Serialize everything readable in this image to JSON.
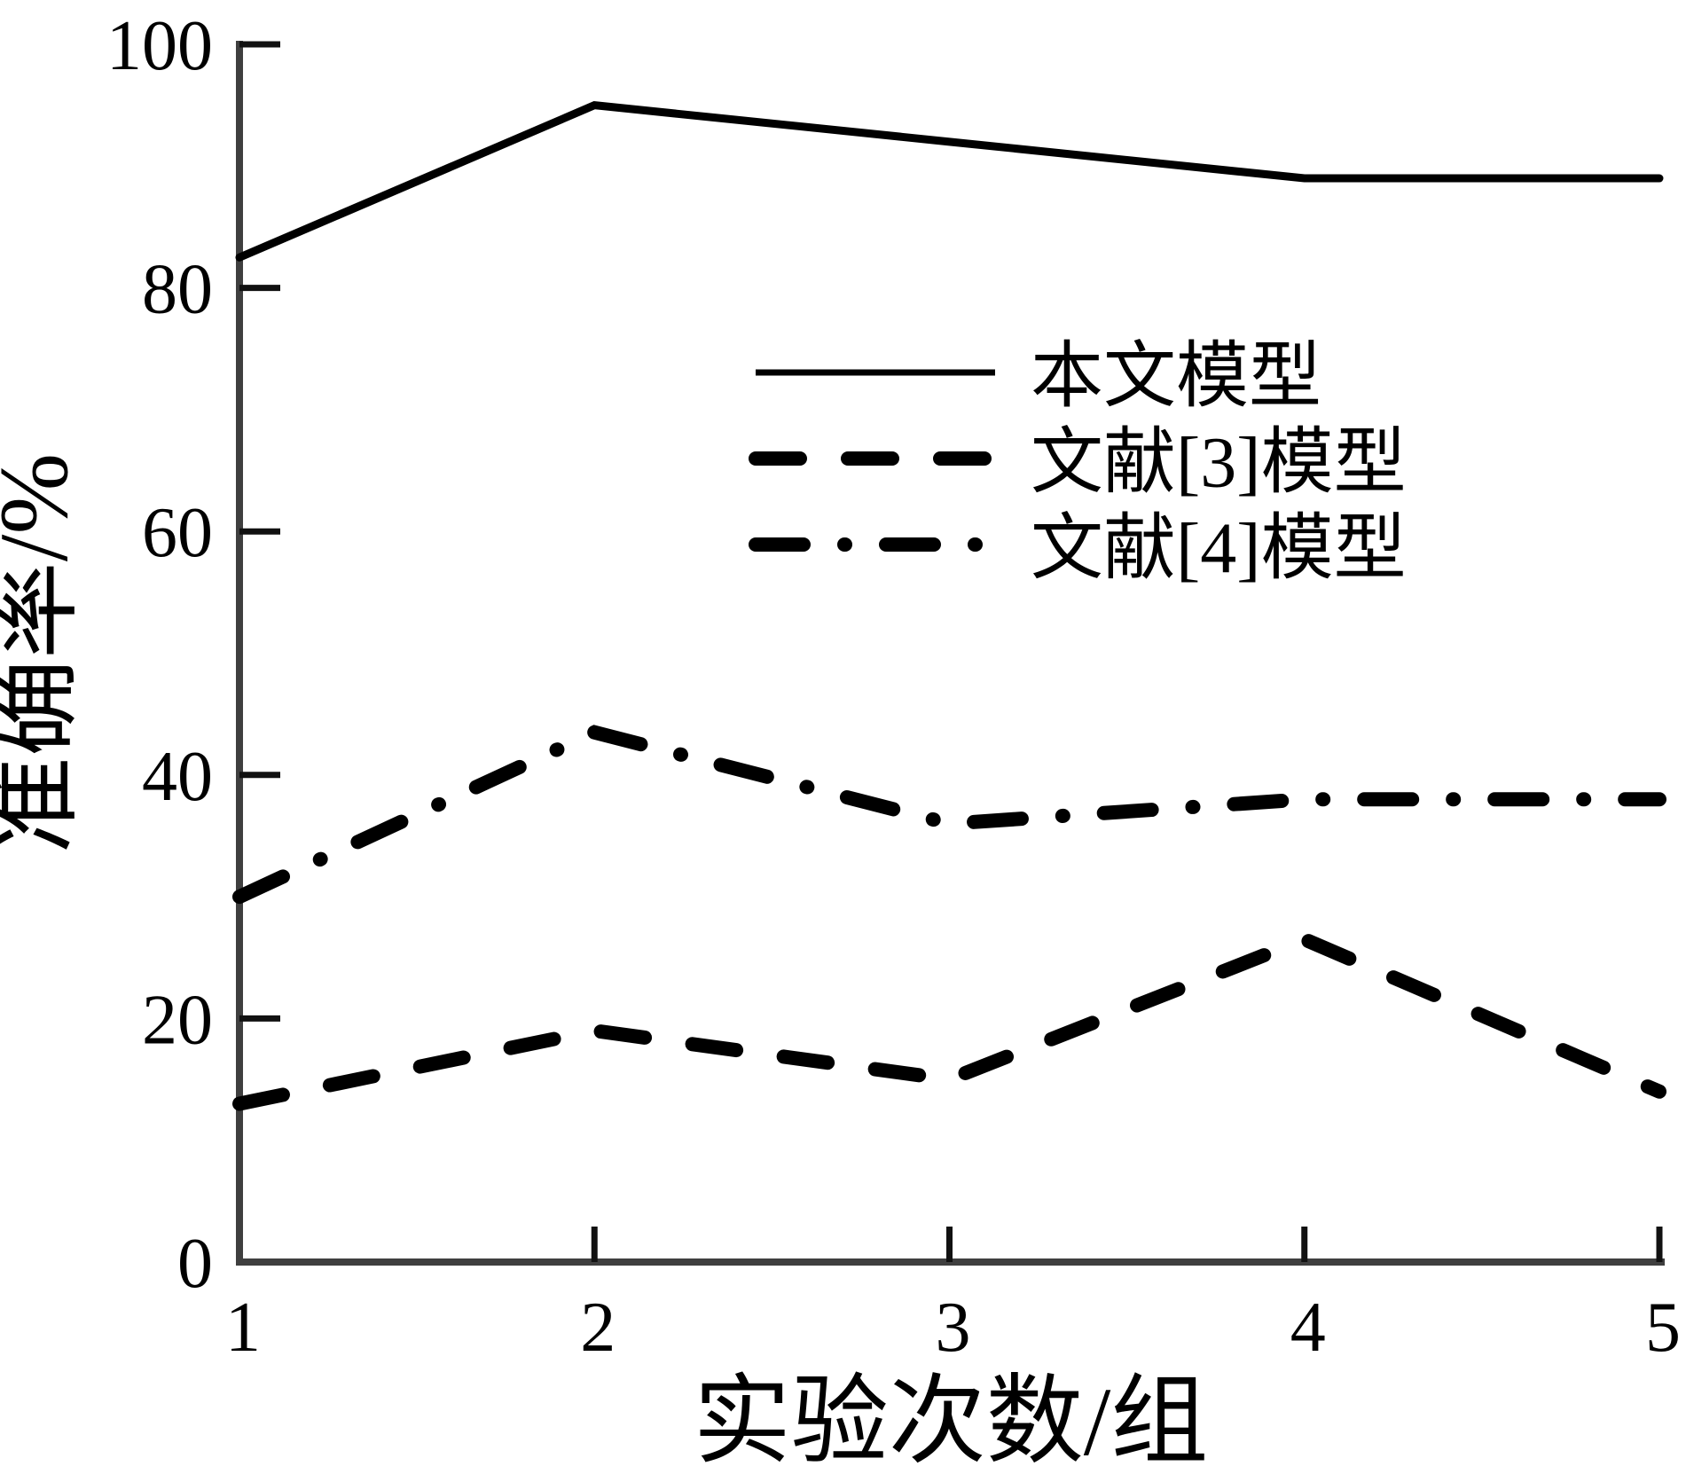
{
  "chart_data": {
    "type": "line",
    "title": "",
    "xlabel": "实验次数/组",
    "ylabel": "准确率/%",
    "x": [
      1,
      2,
      3,
      4,
      5
    ],
    "xticks": [
      1,
      2,
      3,
      4,
      5
    ],
    "yticks": [
      0,
      20,
      40,
      60,
      80,
      100
    ],
    "xlim": [
      1,
      5
    ],
    "ylim": [
      0,
      100
    ],
    "grid": false,
    "legend_position": "upper-right-inside",
    "series": [
      {
        "name": "本文模型",
        "style": "solid",
        "color": "#000000",
        "values": [
          82.5,
          95,
          92,
          89,
          89
        ]
      },
      {
        "name": "文献[3]模型",
        "style": "dashed",
        "color": "#000000",
        "values": [
          13,
          19,
          15,
          26.5,
          14
        ]
      },
      {
        "name": "文献[4]模型",
        "style": "dashdot",
        "color": "#000000",
        "values": [
          30,
          43.5,
          36,
          38,
          38
        ]
      }
    ]
  },
  "colors": {
    "background": "#ffffff",
    "axis": "#3f3f3f",
    "ticks": "#111111",
    "lines": "#000000",
    "text": "#000000"
  }
}
